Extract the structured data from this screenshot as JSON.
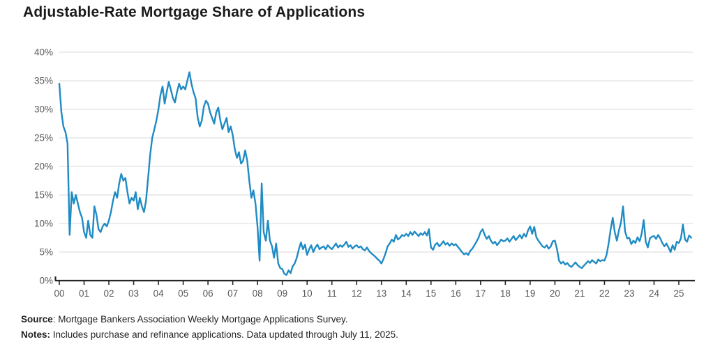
{
  "title": "Adjustable-Rate Mortgage Share of Applications",
  "footer": {
    "source_label": "Source",
    "source_text": ": Mortgage Bankers Association Weekly Mortgage Applications Survey.",
    "notes_label": "Notes:",
    "notes_text": " Includes purchase and refinance applications. Data updated through July 11, 2025."
  },
  "colors": {
    "line": "#1f8bc4",
    "gridline": "#d9d9d9",
    "axis": "#262626",
    "tick_label": "#595959",
    "title_text": "#1a1a1a",
    "footer_text": "#1f1f1f",
    "background": "#ffffff"
  },
  "chart_data": {
    "type": "line",
    "title": "Adjustable-Rate Mortgage Share of Applications",
    "xlabel": "",
    "ylabel": "",
    "legend": "none",
    "grid": "horizontal",
    "ylim": [
      0,
      40
    ],
    "y_tick_labels": [
      "0%",
      "5%",
      "10%",
      "15%",
      "20%",
      "25%",
      "30%",
      "35%",
      "40%"
    ],
    "x_tick_labels": [
      "00",
      "01",
      "02",
      "03",
      "04",
      "05",
      "06",
      "07",
      "08",
      "09",
      "10",
      "11",
      "12",
      "13",
      "14",
      "15",
      "16",
      "17",
      "18",
      "19",
      "20",
      "21",
      "22",
      "23",
      "24",
      "25"
    ],
    "x_start_year": 2000,
    "points_per_year": 12,
    "sampling": "monthly approximation of weekly survey line, values in percent",
    "series": [
      {
        "name": "ARM share of applications",
        "values_by_year": {
          "2000": [
            34.5,
            29.5,
            27.0,
            26.0,
            24.0,
            8.0,
            15.5,
            13.5,
            15.0,
            13.5,
            12.0,
            11.0
          ],
          "2001": [
            8.5,
            7.5,
            10.5,
            8.0,
            7.5,
            13.0,
            11.5,
            9.0,
            8.5,
            9.5,
            10.0,
            9.5
          ],
          "2002": [
            10.5,
            12.0,
            14.0,
            15.5,
            14.5,
            17.0,
            18.7,
            17.5,
            18.0,
            15.5,
            13.5,
            14.5
          ],
          "2003": [
            14.0,
            15.5,
            12.5,
            14.5,
            13.0,
            12.0,
            14.0,
            18.0,
            22.0,
            25.0,
            26.5,
            28.0
          ],
          "2004": [
            30.0,
            32.5,
            34.0,
            31.0,
            33.0,
            34.8,
            33.5,
            32.0,
            31.2,
            33.0,
            34.5,
            33.5
          ],
          "2005": [
            34.0,
            33.5,
            35.0,
            36.5,
            34.5,
            33.0,
            31.9,
            28.6,
            27.0,
            28.0,
            30.5,
            31.5
          ],
          "2006": [
            31.0,
            29.5,
            28.5,
            27.5,
            29.5,
            30.3,
            28.0,
            26.5,
            27.5,
            28.5,
            26.0,
            27.0
          ],
          "2007": [
            25.5,
            23.0,
            21.5,
            22.5,
            20.5,
            21.0,
            22.8,
            21.0,
            17.5,
            14.5,
            15.8,
            13.5
          ],
          "2008": [
            9.3,
            3.5,
            17.0,
            8.5,
            7.0,
            10.5,
            7.0,
            6.0,
            4.0,
            6.5,
            3.0,
            2.2
          ],
          "2009": [
            2.0,
            1.2,
            1.0,
            1.8,
            1.3,
            2.5,
            3.0,
            4.0,
            5.5,
            6.7,
            5.5,
            6.3
          ],
          "2010": [
            4.5,
            5.5,
            6.2,
            5.0,
            5.8,
            6.3,
            5.5,
            5.8,
            6.0,
            5.5,
            6.2,
            5.8
          ],
          "2011": [
            5.5,
            6.0,
            6.5,
            5.8,
            6.2,
            5.9,
            6.3,
            6.8,
            5.9,
            6.2,
            5.6,
            6.0
          ],
          "2012": [
            6.2,
            5.8,
            6.0,
            5.5,
            5.3,
            5.8,
            5.2,
            4.8,
            4.5,
            4.2,
            3.8,
            3.5
          ],
          "2013": [
            3.0,
            3.8,
            4.8,
            6.0,
            6.5,
            7.2,
            6.8,
            8.0,
            7.2,
            7.5,
            8.0,
            7.8
          ],
          "2014": [
            8.2,
            7.8,
            8.5,
            8.0,
            8.6,
            8.2,
            7.8,
            8.3,
            8.0,
            8.5,
            7.9,
            9.0
          ],
          "2015": [
            5.8,
            5.4,
            6.3,
            6.6,
            6.0,
            6.4,
            6.9,
            6.3,
            6.6,
            6.1,
            6.5,
            6.2
          ],
          "2016": [
            6.4,
            5.9,
            5.5,
            5.0,
            4.6,
            4.8,
            4.5,
            5.2,
            5.6,
            6.2,
            6.8,
            7.5
          ],
          "2017": [
            8.5,
            9.0,
            8.0,
            7.3,
            7.8,
            7.0,
            6.5,
            6.8,
            6.2,
            6.7,
            7.2,
            6.9
          ],
          "2018": [
            7.0,
            7.4,
            6.8,
            7.3,
            7.8,
            7.1,
            7.5,
            8.0,
            7.4,
            8.2,
            7.7,
            8.8
          ],
          "2019": [
            9.5,
            8.2,
            9.4,
            7.6,
            7.0,
            6.5,
            6.0,
            5.8,
            6.2,
            5.6,
            6.0,
            6.9
          ],
          "2020": [
            7.0,
            5.5,
            3.5,
            3.0,
            3.3,
            2.8,
            3.1,
            2.6,
            2.4,
            2.8,
            3.2,
            2.7
          ],
          "2021": [
            2.4,
            2.2,
            2.6,
            3.0,
            3.4,
            3.1,
            3.6,
            3.3,
            3.0,
            3.7,
            3.4,
            3.6
          ],
          "2022": [
            3.5,
            4.5,
            6.5,
            9.0,
            11.0,
            8.5,
            7.0,
            8.8,
            10.2,
            13.0,
            8.6,
            7.4
          ],
          "2023": [
            7.5,
            6.4,
            7.0,
            6.6,
            7.6,
            6.9,
            8.2,
            10.6,
            6.8,
            5.8,
            7.4,
            7.7
          ],
          "2024": [
            7.8,
            7.3,
            8.0,
            7.4,
            6.6,
            6.0,
            6.5,
            5.8,
            5.0,
            6.2,
            5.4,
            6.8
          ],
          "2025": [
            6.6,
            7.4,
            9.8,
            7.2,
            6.8,
            7.9,
            7.5
          ]
        }
      }
    ]
  }
}
